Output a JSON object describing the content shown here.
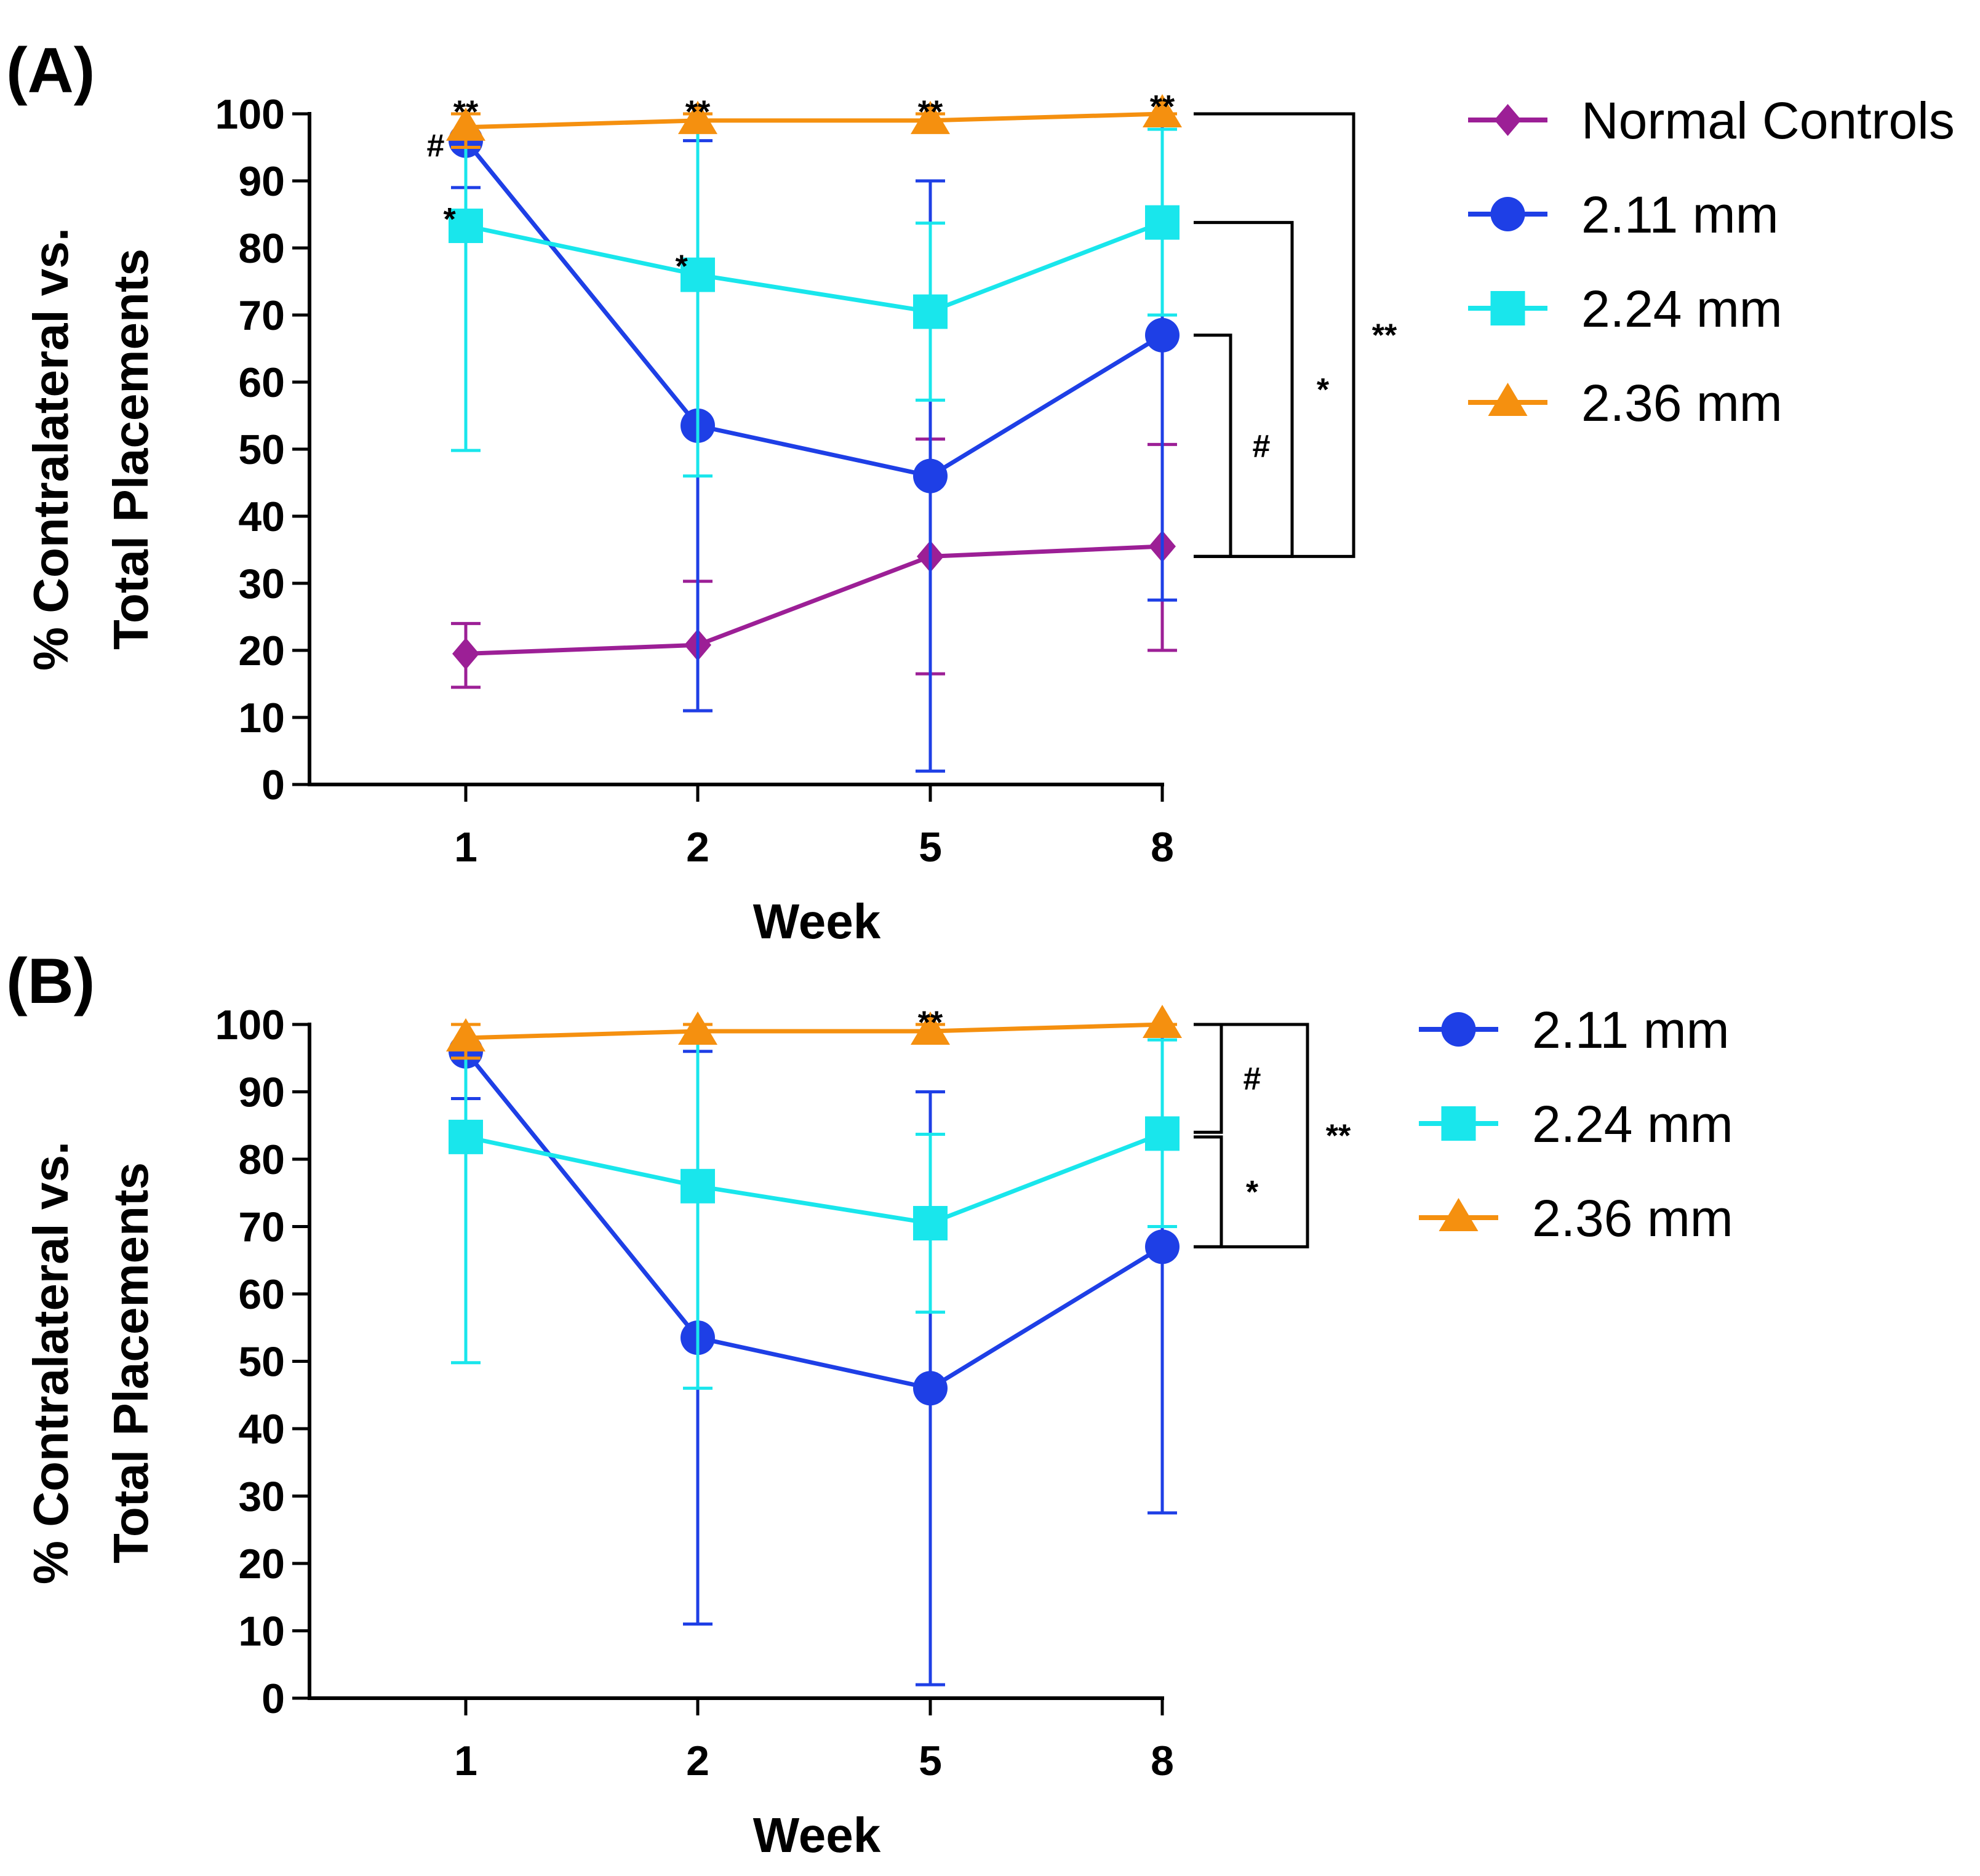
{
  "chart_data": [
    {
      "panel_label": "(A)",
      "type": "line",
      "x_categories": [
        "1",
        "2",
        "5",
        "8"
      ],
      "xlabel": "Week",
      "ylabel_lines": [
        "% Contralateral vs.",
        "Total Placements"
      ],
      "ylim": [
        0,
        100
      ],
      "yticks": [
        "0",
        "10",
        "20",
        "30",
        "40",
        "50",
        "60",
        "70",
        "80",
        "90",
        "100"
      ],
      "series": [
        {
          "name": "Normal Controls",
          "color": "#9c1f96",
          "marker": "diamond",
          "values": [
            19.5,
            20.8,
            34.0,
            35.5
          ],
          "err_low": [
            14.5,
            11.0,
            16.5,
            20.0
          ],
          "err_high": [
            24.0,
            30.3,
            51.5,
            50.7
          ]
        },
        {
          "name": "2.11 mm",
          "color": "#1e3fe6",
          "marker": "circle",
          "values": [
            96.0,
            53.5,
            46.0,
            67.0
          ],
          "err_low": [
            89.0,
            11.0,
            2.0,
            27.5
          ],
          "err_high": [
            100.0,
            96.0,
            90.0,
            100.0
          ]
        },
        {
          "name": "2.24 mm",
          "color": "#19e6ec",
          "marker": "square",
          "values": [
            83.3,
            76.0,
            70.5,
            83.8
          ],
          "err_low": [
            49.8,
            46.0,
            57.3,
            70.0
          ],
          "err_high": [
            100.0,
            100.0,
            83.7,
            97.7
          ]
        },
        {
          "name": "2.36 mm",
          "color": "#f5900f",
          "marker": "triangle",
          "values": [
            98.0,
            99.0,
            99.0,
            100.0
          ],
          "err_low": [
            95.0,
            98.0,
            98.0,
            100.0
          ],
          "err_high": [
            100.0,
            100.0,
            100.0,
            100.0
          ]
        }
      ],
      "annotations": [
        {
          "text": "**",
          "xi": 0,
          "y": 100.5
        },
        {
          "text": "**",
          "xi": 1,
          "y": 100.5
        },
        {
          "text": "**",
          "xi": 2,
          "y": 100.5
        },
        {
          "text": "**",
          "xi": 3,
          "y": 101.3
        },
        {
          "text": "#",
          "xi": 0,
          "y": 95.5,
          "dx": -0.13
        },
        {
          "text": "*",
          "xi": 0,
          "y": 84.5,
          "dx": -0.07
        },
        {
          "text": "*",
          "xi": 1,
          "y": 77.5,
          "dx": -0.07
        }
      ],
      "brackets": [
        {
          "label": "#",
          "y_top": 67,
          "y_bottom": 34,
          "level": 0
        },
        {
          "label": "*",
          "y_top": 83.8,
          "y_bottom": 34,
          "level": 1
        },
        {
          "label": "**",
          "y_top": 100,
          "y_bottom": 34,
          "level": 2
        }
      ]
    },
    {
      "panel_label": "(B)",
      "type": "line",
      "x_categories": [
        "1",
        "2",
        "5",
        "8"
      ],
      "xlabel": "Week",
      "ylabel_lines": [
        "% Contralateral vs.",
        "Total Placements"
      ],
      "ylim": [
        0,
        100
      ],
      "yticks": [
        "0",
        "10",
        "20",
        "30",
        "40",
        "50",
        "60",
        "70",
        "80",
        "90",
        "100"
      ],
      "series": [
        {
          "name": "2.11 mm",
          "color": "#1e3fe6",
          "marker": "circle",
          "values": [
            96.0,
            53.5,
            46.0,
            67.0
          ],
          "err_low": [
            89.0,
            11.0,
            2.0,
            27.5
          ],
          "err_high": [
            100.0,
            96.0,
            90.0,
            100.0
          ]
        },
        {
          "name": "2.24 mm",
          "color": "#19e6ec",
          "marker": "square",
          "values": [
            83.3,
            76.0,
            70.5,
            83.8
          ],
          "err_low": [
            49.8,
            46.0,
            57.3,
            70.0
          ],
          "err_high": [
            100.0,
            100.0,
            83.7,
            97.7
          ]
        },
        {
          "name": "2.36 mm",
          "color": "#f5900f",
          "marker": "triangle",
          "values": [
            98.0,
            99.0,
            99.0,
            100.0
          ],
          "err_low": [
            95.0,
            98.0,
            98.0,
            100.0
          ],
          "err_high": [
            100.0,
            100.0,
            100.0,
            100.0
          ]
        }
      ],
      "annotations": [
        {
          "text": "**",
          "xi": 2,
          "y": 100.5
        }
      ],
      "brackets": [
        {
          "label": "#",
          "y_top": 100,
          "y_bottom": 84,
          "level": 0
        },
        {
          "label": "*",
          "y_top": 83.3,
          "y_bottom": 67,
          "level": 0
        },
        {
          "label": "**",
          "y_top": 100,
          "y_bottom": 67,
          "level": 1
        }
      ]
    }
  ]
}
